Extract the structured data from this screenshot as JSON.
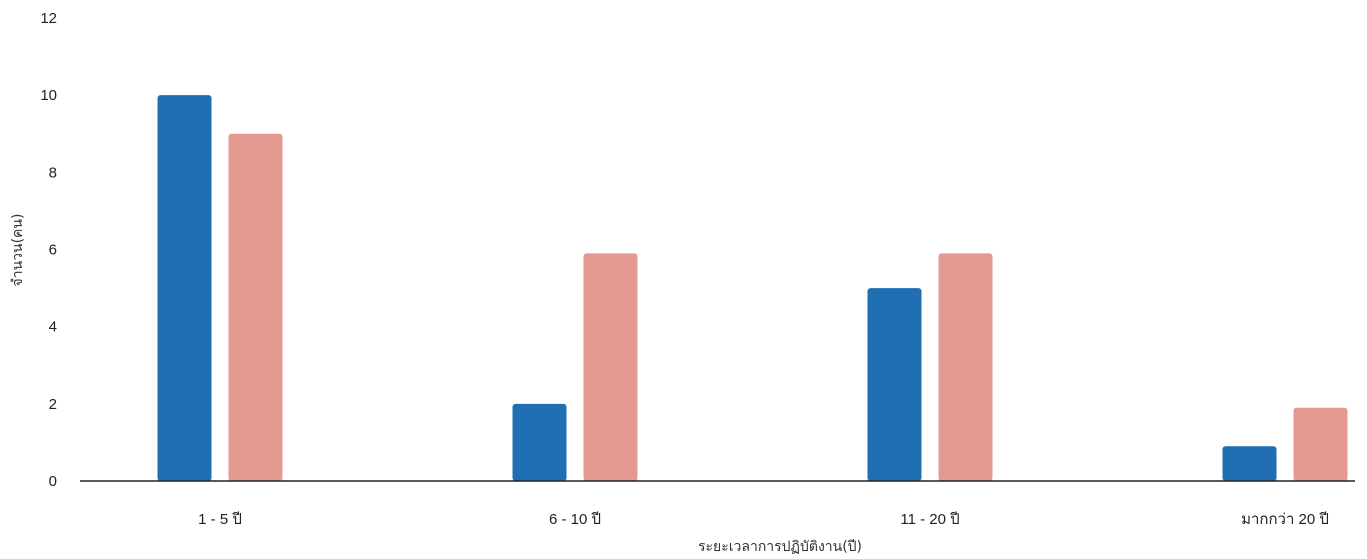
{
  "chart_data": {
    "type": "bar",
    "categories": [
      "1 - 5 ปี",
      "6 - 10 ปี",
      "11 - 20 ปี",
      "มากกว่า 20 ปี"
    ],
    "series": [
      {
        "values": [
          10,
          2,
          5,
          0.9
        ],
        "color": "#1f6fb2"
      },
      {
        "values": [
          9,
          5.9,
          5.9,
          1.9
        ],
        "color": "#e39a90"
      }
    ],
    "xlabel": "ระยะเวลาการปฏิบัติงาน(ปี)",
    "ylabel": "จำนวน(คน)",
    "ylim": [
      0,
      12
    ],
    "yticks": [
      0,
      2,
      4,
      6,
      8,
      10,
      12
    ],
    "grid": false,
    "legend": "none"
  }
}
